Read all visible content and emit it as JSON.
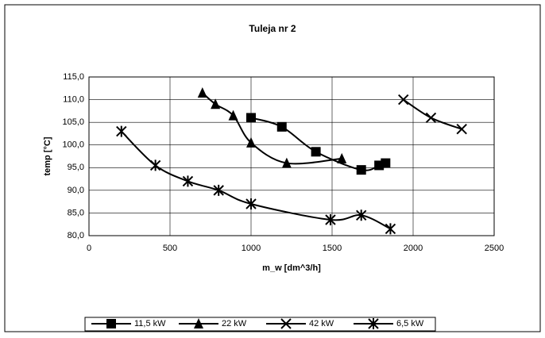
{
  "chart_data": {
    "type": "scatter",
    "title": "Tuleja nr 2",
    "x_label": "m_w [dm^3/h]",
    "y_label": "temp [°C]",
    "xlim": [
      0,
      2500
    ],
    "xticks": [
      0,
      500,
      1000,
      1500,
      2000,
      2500
    ],
    "ylim": [
      80,
      115
    ],
    "yticks": [
      {
        "value": 80,
        "label": "80,0"
      },
      {
        "value": 85,
        "label": "85,0"
      },
      {
        "value": 90,
        "label": "90,0"
      },
      {
        "value": 95,
        "label": "95,0"
      },
      {
        "value": 100,
        "label": "100,0"
      },
      {
        "value": 105,
        "label": "105,0"
      },
      {
        "value": 110,
        "label": "110,0"
      },
      {
        "value": 115,
        "label": "115,0"
      }
    ],
    "grid": true,
    "legend": "bottom",
    "series": [
      {
        "name": "11,5 kW",
        "color": "#000000",
        "marker": "square",
        "x": [
          1000,
          1190,
          1400,
          1680,
          1790,
          1830
        ],
        "values": [
          106,
          104,
          98.5,
          94.5,
          95.5,
          96
        ]
      },
      {
        "name": "22 kW",
        "color": "#000000",
        "marker": "triangle",
        "x": [
          700,
          780,
          890,
          1000,
          1220,
          1560
        ],
        "values": [
          111.5,
          109,
          106.5,
          100.5,
          96,
          97
        ]
      },
      {
        "name": "42 kW",
        "color": "#000000",
        "marker": "x",
        "x": [
          1940,
          2110,
          2300
        ],
        "values": [
          110,
          106,
          103.5
        ]
      },
      {
        "name": "6,5 kW",
        "color": "#000000",
        "marker": "star",
        "x": [
          200,
          410,
          610,
          800,
          1000,
          1490,
          1680,
          1860
        ],
        "values": [
          103,
          95.5,
          92,
          90,
          87,
          83.5,
          84.5,
          81.5
        ]
      }
    ]
  }
}
